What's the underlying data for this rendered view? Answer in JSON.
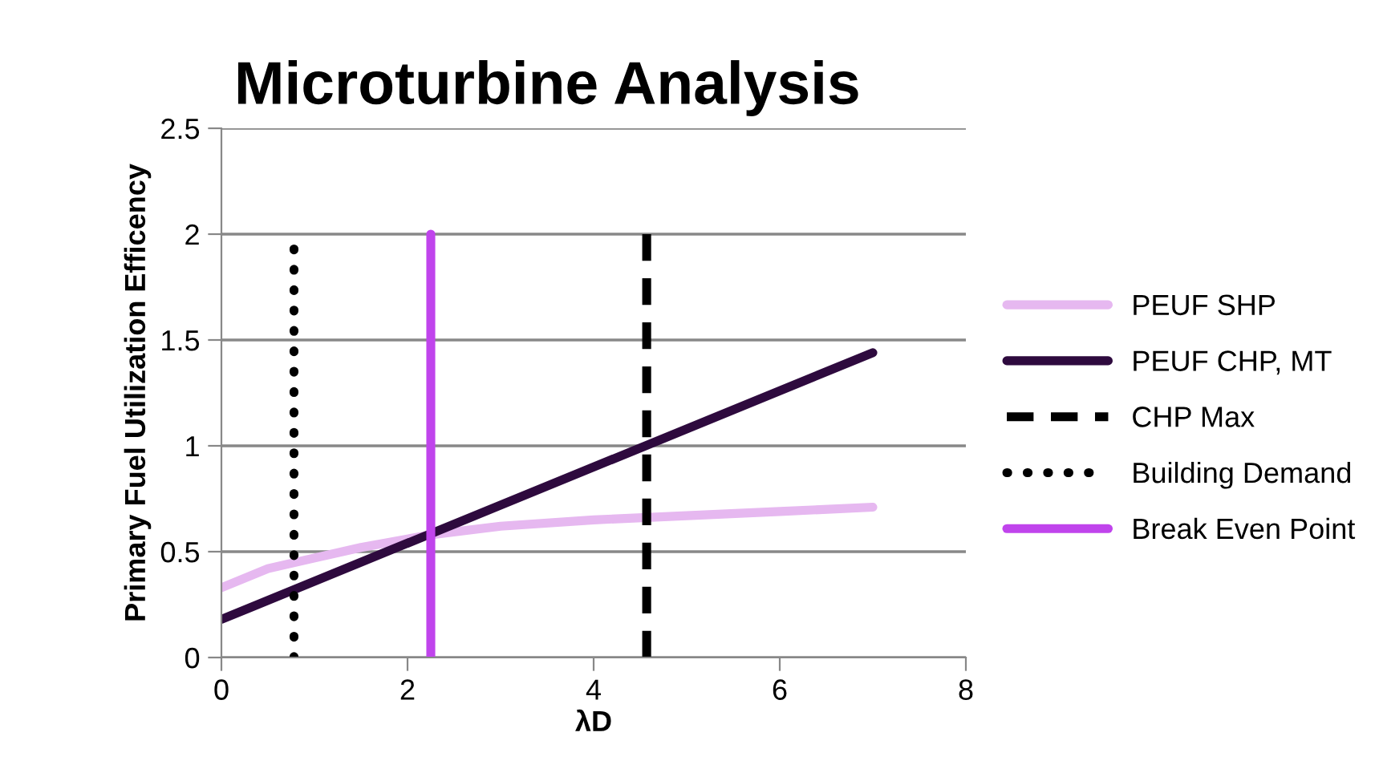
{
  "chart_data": {
    "type": "line",
    "title": "Microturbine Analysis",
    "xlabel": "λD",
    "ylabel": "Primary Fuel Utilization Efficency",
    "xlim": [
      0,
      8
    ],
    "xticks": [
      0,
      2,
      4,
      6,
      8
    ],
    "ylim": [
      0,
      2.5
    ],
    "yticks": [
      0,
      0.5,
      1,
      1.5,
      2,
      2.5
    ],
    "grid": "y",
    "legend": "right",
    "series": [
      {
        "name": "PEUF SHP",
        "color": "#e6b8f0",
        "x": [
          0,
          0.5,
          1,
          1.5,
          2,
          2.25,
          3,
          4,
          5,
          6,
          7
        ],
        "values": [
          0.33,
          0.42,
          0.47,
          0.52,
          0.56,
          0.58,
          0.62,
          0.65,
          0.67,
          0.69,
          0.71
        ]
      },
      {
        "name": "PEUF CHP, MT",
        "color": "#2e0a3e",
        "x": [
          0,
          7
        ],
        "values": [
          0.18,
          1.44
        ]
      },
      {
        "name": "CHP Max",
        "color": "#000000",
        "line_style": "dashed",
        "x": [
          4.57,
          4.57
        ],
        "values": [
          0,
          2
        ]
      },
      {
        "name": "Building Demand",
        "color": "#000000",
        "line_style": "dotted",
        "x": [
          0.78,
          0.78
        ],
        "values": [
          0,
          1.93
        ]
      },
      {
        "name": "Break Even Point",
        "color": "#c044ec",
        "x": [
          2.25,
          2.25
        ],
        "values": [
          0,
          2
        ]
      }
    ]
  }
}
